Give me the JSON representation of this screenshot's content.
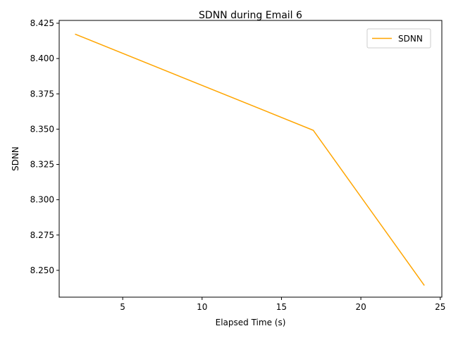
{
  "chart_data": {
    "type": "line",
    "title": "SDNN during Email 6",
    "xlabel": "Elapsed Time (s)",
    "ylabel": "SDNN",
    "xlim": [
      1,
      25.1
    ],
    "ylim": [
      8.231,
      8.427
    ],
    "x_ticks": [
      5,
      10,
      15,
      20,
      25
    ],
    "y_ticks": [
      8.25,
      8.275,
      8.3,
      8.325,
      8.35,
      8.375,
      8.4,
      8.425
    ],
    "grid": false,
    "legend": {
      "position": "top-right"
    },
    "series": [
      {
        "name": "SDNN",
        "color": "#ffa500",
        "x": [
          2,
          17,
          24
        ],
        "y": [
          8.4173,
          8.3492,
          8.2393
        ]
      }
    ]
  }
}
